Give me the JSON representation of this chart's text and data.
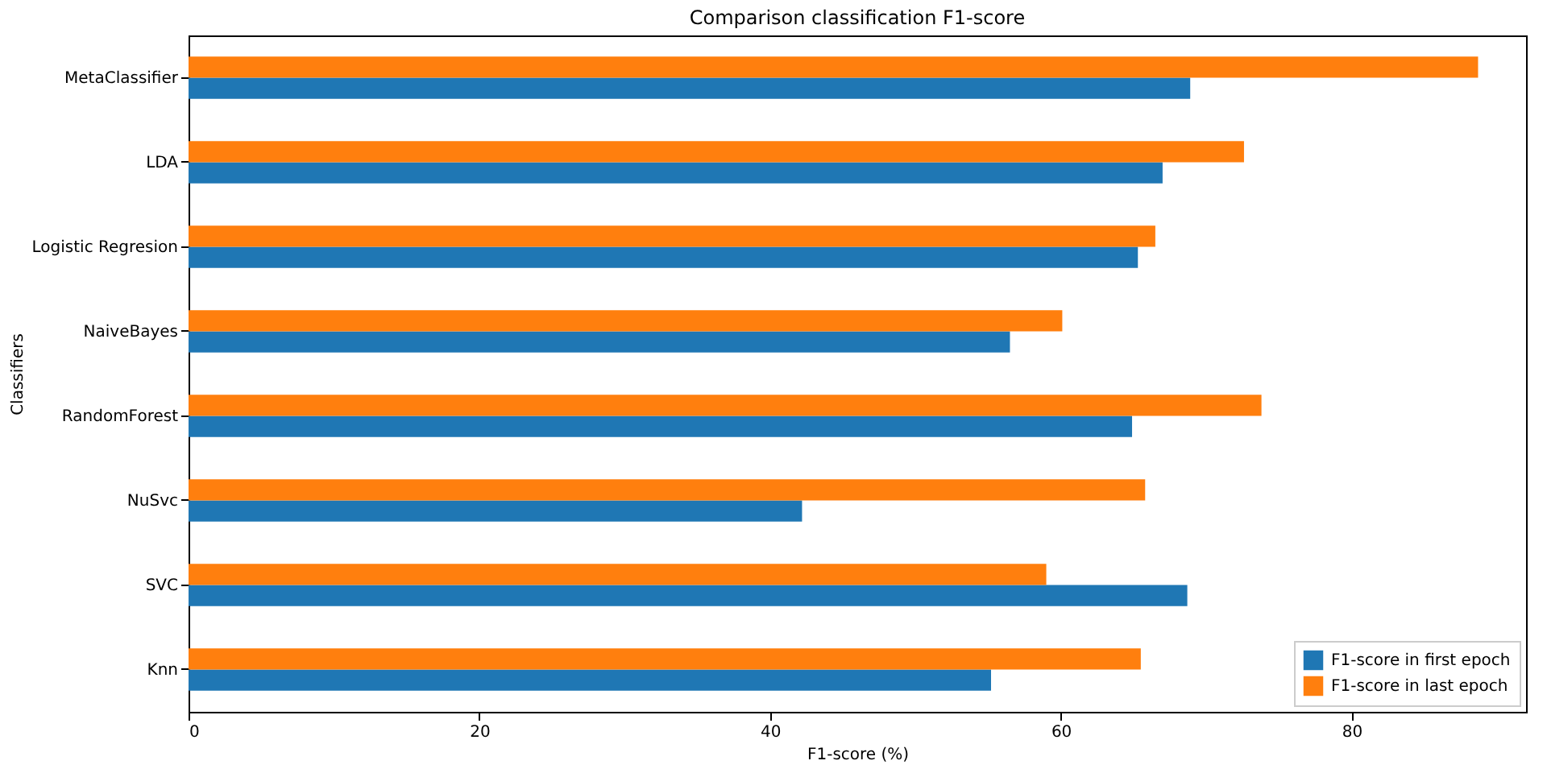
{
  "chart_data": {
    "type": "bar",
    "orientation": "horizontal",
    "title": "Comparison classification F1-score",
    "xlabel": "F1-score (%)",
    "ylabel": "Classifiers",
    "categories": [
      "MetaClassifier",
      "LDA",
      "Logistic Regresion",
      "NaiveBayes",
      "RandomForest",
      "NuSvc",
      "SVC",
      "Knn"
    ],
    "series": [
      {
        "name": "F1-score in first epoch",
        "color": "#1f77b4",
        "values": [
          68.9,
          67.0,
          65.3,
          56.5,
          64.9,
          42.2,
          68.7,
          55.2
        ]
      },
      {
        "name": "F1-score in last epoch",
        "color": "#ff7f0e",
        "values": [
          88.7,
          72.6,
          66.5,
          60.1,
          73.8,
          65.8,
          59.0,
          65.5
        ]
      }
    ],
    "xlim": [
      0,
      92
    ],
    "xticks": [
      0,
      20,
      40,
      60,
      80
    ],
    "grid": false,
    "legend": "bottom right"
  }
}
